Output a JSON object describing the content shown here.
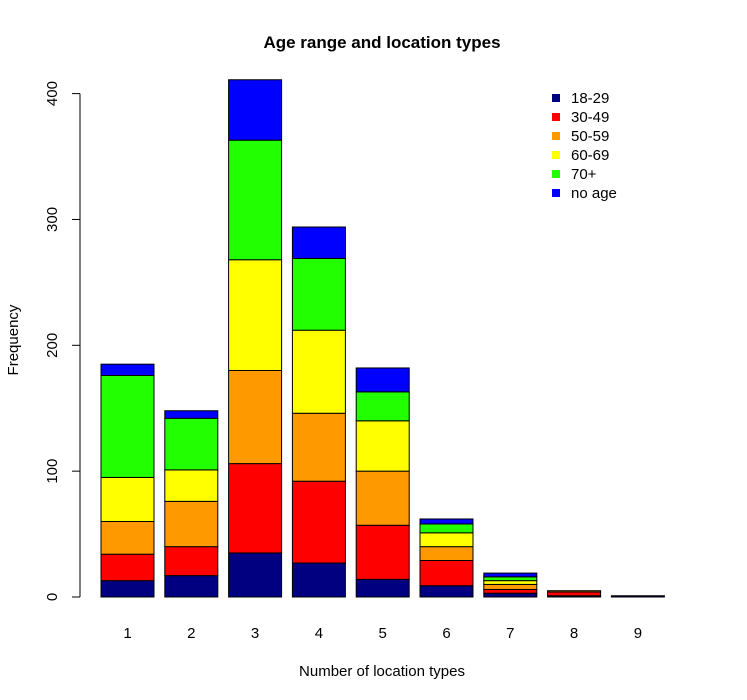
{
  "chart_data": {
    "type": "bar",
    "stacked": true,
    "title": "Age range and location types",
    "xlabel": "Number of location types",
    "ylabel": "Frequency",
    "categories": [
      "1",
      "2",
      "3",
      "4",
      "5",
      "6",
      "7",
      "8",
      "9"
    ],
    "y_ticks": [
      "0",
      "100",
      "200",
      "300",
      "400"
    ],
    "ylim": [
      0,
      410
    ],
    "grid": false,
    "legend_position": "top-right",
    "series": [
      {
        "name": "18-29",
        "color": "#000080",
        "values": [
          13,
          17,
          35,
          27,
          14,
          9,
          3,
          1,
          1
        ]
      },
      {
        "name": "30-49",
        "color": "#ff0000",
        "values": [
          21,
          23,
          71,
          65,
          43,
          20,
          3,
          3,
          0
        ]
      },
      {
        "name": "50-59",
        "color": "#ff9900",
        "values": [
          26,
          36,
          74,
          54,
          43,
          11,
          4,
          1,
          0
        ]
      },
      {
        "name": "60-69",
        "color": "#ffff00",
        "values": [
          35,
          25,
          88,
          66,
          40,
          11,
          3,
          0,
          0
        ]
      },
      {
        "name": "70+",
        "color": "#22ff00",
        "values": [
          81,
          41,
          95,
          57,
          23,
          7,
          3,
          0,
          0
        ]
      },
      {
        "name": "no age",
        "color": "#0000ff",
        "values": [
          9,
          6,
          48,
          25,
          19,
          4,
          3,
          0,
          0
        ]
      }
    ]
  }
}
